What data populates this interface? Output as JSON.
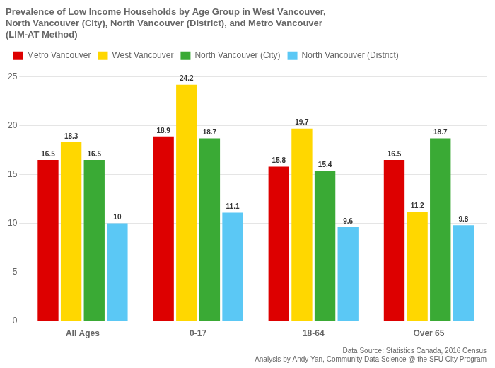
{
  "chart_data": {
    "type": "bar",
    "title": "Prevalence of Low Income Households by Age Group in West Vancouver,\nNorth Vancouver (City), North Vancouver (District), and Metro Vancouver\n(LIM-AT Method)",
    "categories": [
      "All Ages",
      "0-17",
      "18-64",
      "Over 65"
    ],
    "series": [
      {
        "name": "Metro Vancouver",
        "color": "#DD0000",
        "values": [
          16.5,
          18.9,
          15.8,
          16.5
        ]
      },
      {
        "name": "West Vancouver",
        "color": "#FFD700",
        "values": [
          18.3,
          24.2,
          19.7,
          11.2
        ]
      },
      {
        "name": "North Vancouver (City)",
        "color": "#3AAA35",
        "values": [
          16.5,
          18.7,
          15.4,
          18.7
        ]
      },
      {
        "name": "North Vancouver (District)",
        "color": "#5BC8F5",
        "values": [
          10,
          11.1,
          9.6,
          9.8
        ]
      }
    ],
    "ylim": [
      0,
      26
    ],
    "yticks": [
      0,
      5,
      10,
      15,
      20,
      25
    ],
    "grid": true,
    "legend": "upper left",
    "data_labels": true,
    "annotations": [
      "Data Source: Statistics Canada, 2016 Census",
      "Analysis by Andy Yan, Community Data Science @ the SFU City Program"
    ]
  }
}
